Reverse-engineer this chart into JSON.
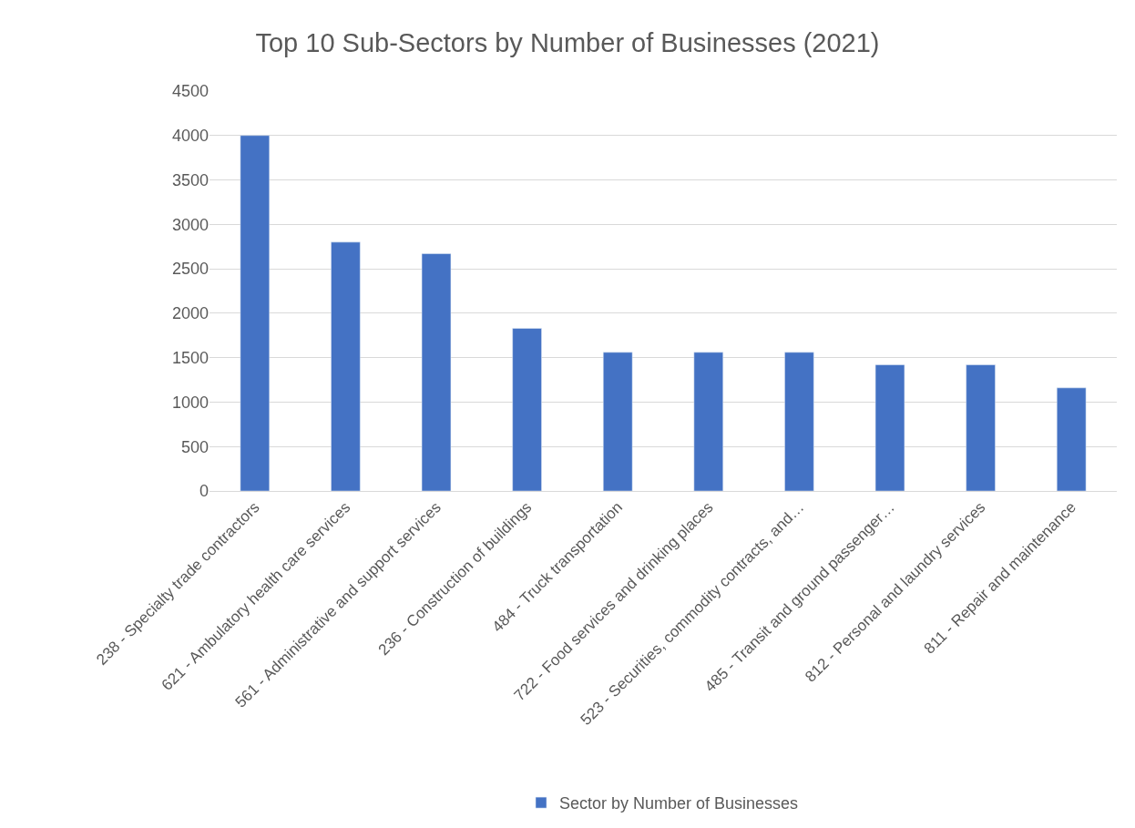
{
  "chart_data": {
    "type": "bar",
    "title": "Top 10 Sub-Sectors by Number of Businesses (2021)",
    "categories": [
      "238 - Specialty trade contractors",
      "621 - Ambulatory health care services",
      "561 - Administrative and support services",
      "236 - Construction of buildings",
      "484 - Truck transportation",
      "722 - Food services and drinking places",
      "523 - Securities, commodity contracts, and…",
      "485 - Transit and ground passenger…",
      "812 - Personal and laundry services",
      "811 - Repair and maintenance"
    ],
    "series": [
      {
        "name": "Sector by Number of Businesses",
        "color": "#4472c4",
        "values": [
          4000,
          2800,
          2670,
          1830,
          1560,
          1560,
          1560,
          1420,
          1420,
          1160
        ]
      }
    ],
    "ylim": [
      0,
      4500
    ],
    "yticks": [
      0,
      500,
      1000,
      1500,
      2000,
      2500,
      3000,
      3500,
      4000,
      4500
    ],
    "grid": "y",
    "legend": "bottom"
  }
}
